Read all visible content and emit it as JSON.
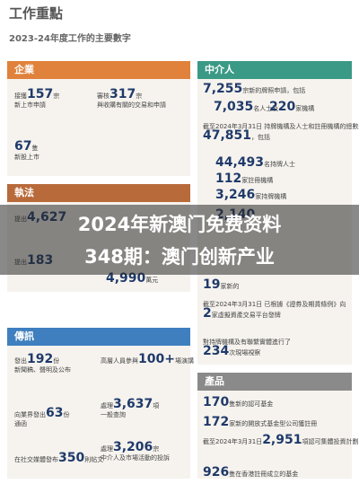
{
  "header": {
    "title": "工作重點",
    "subtitle": "2023-24年度工作的主要數字"
  },
  "sections": [
    {
      "title": "企業",
      "items": [
        {
          "lead": "接獲",
          "number": "157",
          "unit": "宗",
          "desc": "新上市申請"
        },
        {
          "lead": "審核",
          "number": "317",
          "unit": "宗",
          "desc": "與收購有關的交易和申請"
        },
        {
          "number": "67",
          "unit": "隻",
          "desc": "新股上市"
        }
      ]
    },
    {
      "title": "執法",
      "items": [
        {
          "lead": "提出",
          "number": "4,627"
        },
        {
          "lead": "提出",
          "number": "183"
        },
        {
          "number": "4,990",
          "unit": "萬元"
        }
      ]
    },
    {
      "title": "傳訊",
      "items": [
        {
          "lead": "發出",
          "number": "192",
          "unit": "份",
          "desc": "新聞稿、聲明及公布"
        },
        {
          "lead": "高層人員參與",
          "number": "100+",
          "unit": "場演講"
        },
        {
          "lead": "向業界發出",
          "number": "63",
          "unit": "份",
          "desc": "通函"
        },
        {
          "lead": "處理",
          "number": "3,637",
          "unit": "項",
          "desc": "一般查詢"
        },
        {
          "lead": "在社交媒體發布",
          "number": "350",
          "unit": "則帖文"
        },
        {
          "lead": "處理",
          "number": "3,206",
          "unit": "宗",
          "desc": "中介人及市場活動的投訴"
        }
      ]
    },
    {
      "title": "中介人",
      "items": [
        {
          "number": "7,255",
          "unit": "宗新的牌照申請，包括"
        },
        {
          "number": "7,035",
          "unit": "名人士及"
        },
        {
          "number": "220",
          "unit": "家機構"
        },
        {
          "lead": "截至2024年3月31日 持牌機構及人士和註冊機構的總數達",
          "number": "47,851",
          "unit": "，包括"
        },
        {
          "number": "44,493",
          "unit": "名持牌人士"
        },
        {
          "number": "112",
          "unit": "家註冊機構"
        },
        {
          "number": "3,246",
          "unit": "家持牌機構"
        },
        {
          "number": "2,140"
        },
        {
          "number": "19",
          "unit": "家新的"
        },
        {
          "lead": "截至2024年3月31日 已根據《證券及期貨條例》向",
          "number": "2",
          "unit": "家虛擬資產交易平台發牌"
        },
        {
          "lead": "對持牌機構及有聯繫實體進行了",
          "number": "234",
          "unit": "次現場視察"
        }
      ]
    },
    {
      "title": "產品",
      "items": [
        {
          "number": "170",
          "unit": "隻新的認可基金"
        },
        {
          "number": "172",
          "unit": "家新的開放式基金型公司獲註冊"
        },
        {
          "lead": "截至2024年3月31日",
          "number": "2,951",
          "unit": "項認可集體投資計劃，包括"
        },
        {
          "number": "926",
          "unit": "隻在香港註冊成立的基金"
        }
      ]
    }
  ],
  "overlay": {
    "lines": [
      "2024年新澳门免费资料",
      "348期：澳门创新产业"
    ]
  }
}
